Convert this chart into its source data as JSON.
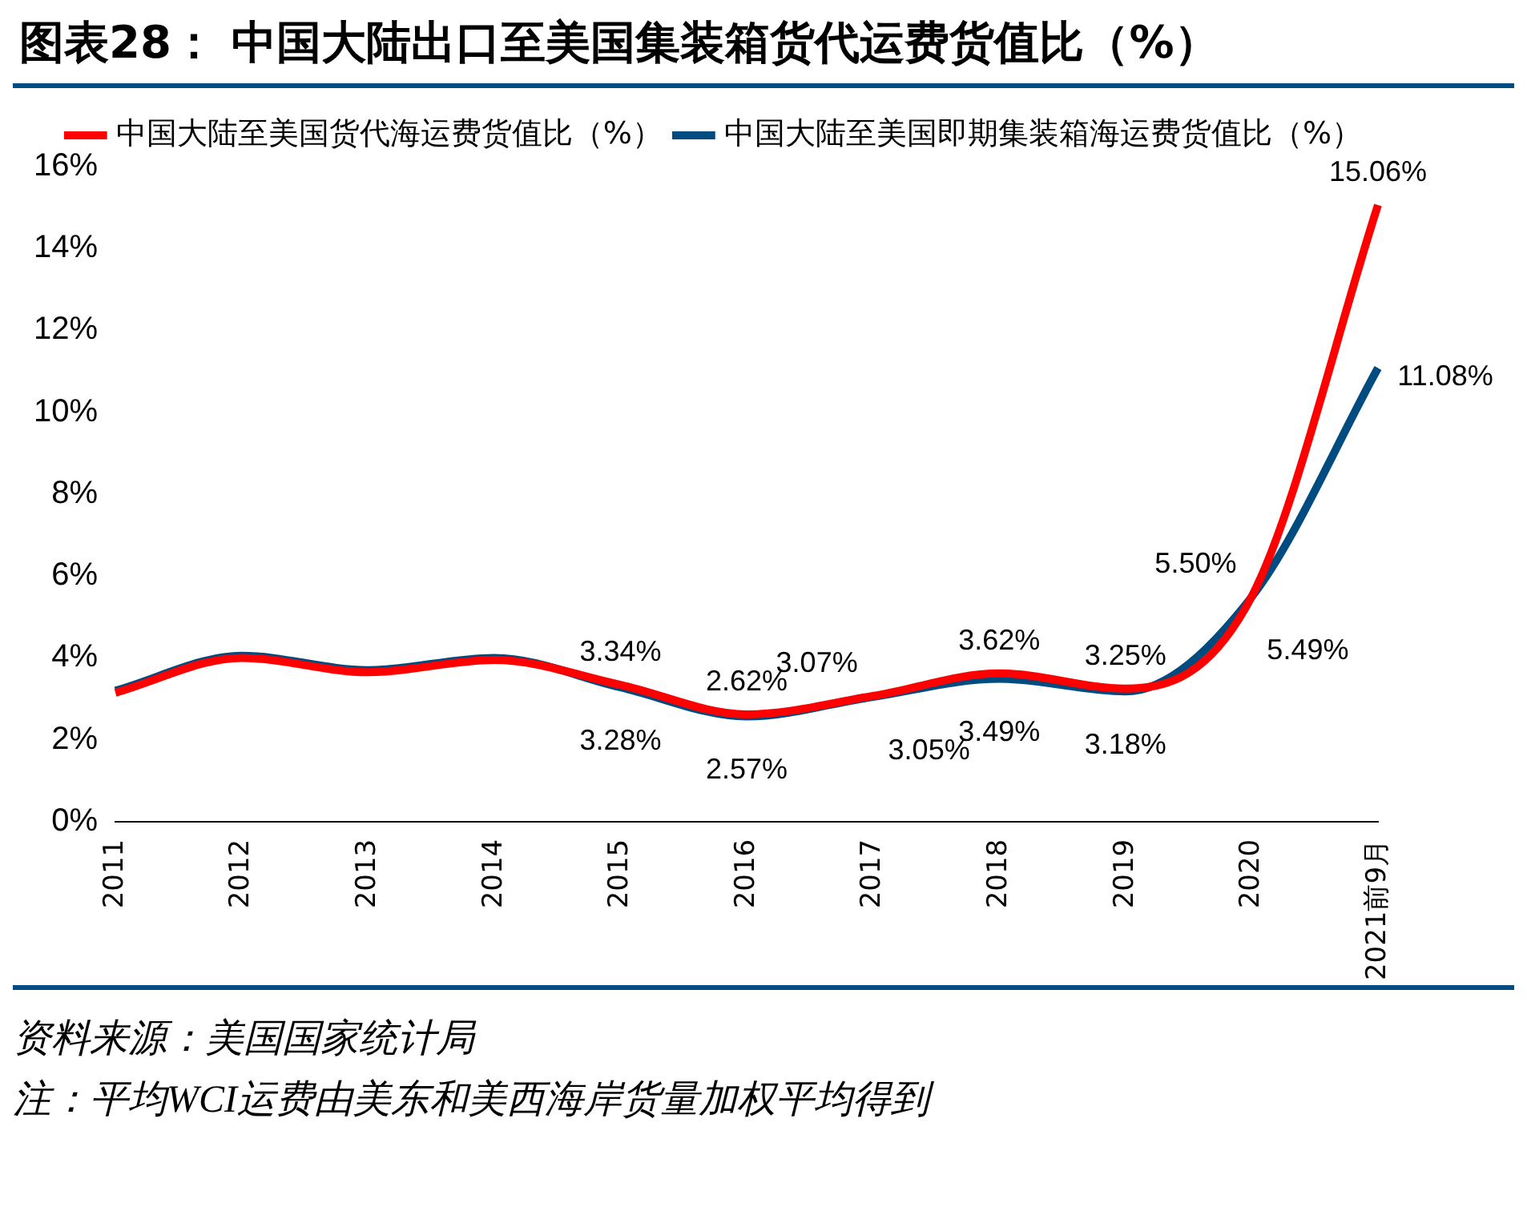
{
  "chart_data": {
    "type": "line",
    "title": "图表28：  中国大陆出口至美国集装箱货代运费货值比（%）",
    "categories": [
      "2011",
      "2012",
      "2013",
      "2014",
      "2015",
      "2016",
      "2017",
      "2018",
      "2019",
      "2020",
      "2021前9月"
    ],
    "series": [
      {
        "name": "中国大陆至美国货代海运费货值比（%）",
        "color": "#ff0000",
        "values": [
          3.15,
          4.0,
          3.65,
          3.95,
          3.34,
          2.62,
          3.07,
          3.62,
          3.25,
          5.5,
          15.06
        ],
        "value_labels": [
          null,
          null,
          null,
          null,
          "3.34%",
          "2.62%",
          "3.07%",
          "3.62%",
          "3.25%",
          "5.50%",
          "15.06%"
        ]
      },
      {
        "name": "中国大陆至美国即期集装箱海运费货值比（%）",
        "color": "#004b7f",
        "values": [
          3.2,
          4.05,
          3.7,
          4.0,
          3.28,
          2.57,
          3.05,
          3.49,
          3.18,
          5.49,
          11.08
        ],
        "value_labels": [
          null,
          null,
          null,
          null,
          "3.28%",
          "2.57%",
          "3.05%",
          "3.49%",
          "3.18%",
          "5.49%",
          "11.08%"
        ]
      }
    ],
    "ylim": [
      0,
      16
    ],
    "yticks": [
      {
        "value": 0,
        "label": "0%"
      },
      {
        "value": 2,
        "label": "2%"
      },
      {
        "value": 4,
        "label": "4%"
      },
      {
        "value": 6,
        "label": "6%"
      },
      {
        "value": 8,
        "label": "8%"
      },
      {
        "value": 10,
        "label": "10%"
      },
      {
        "value": 12,
        "label": "12%"
      },
      {
        "value": 14,
        "label": "14%"
      },
      {
        "value": 16,
        "label": "16%"
      }
    ],
    "grid": false,
    "legend": "top right",
    "marker": "none",
    "line_style": "solid",
    "annotations": [
      "资料来源：美国国家统计局",
      "注：平均WCI运费由美东和美西海岸货量加权平均得到"
    ]
  }
}
